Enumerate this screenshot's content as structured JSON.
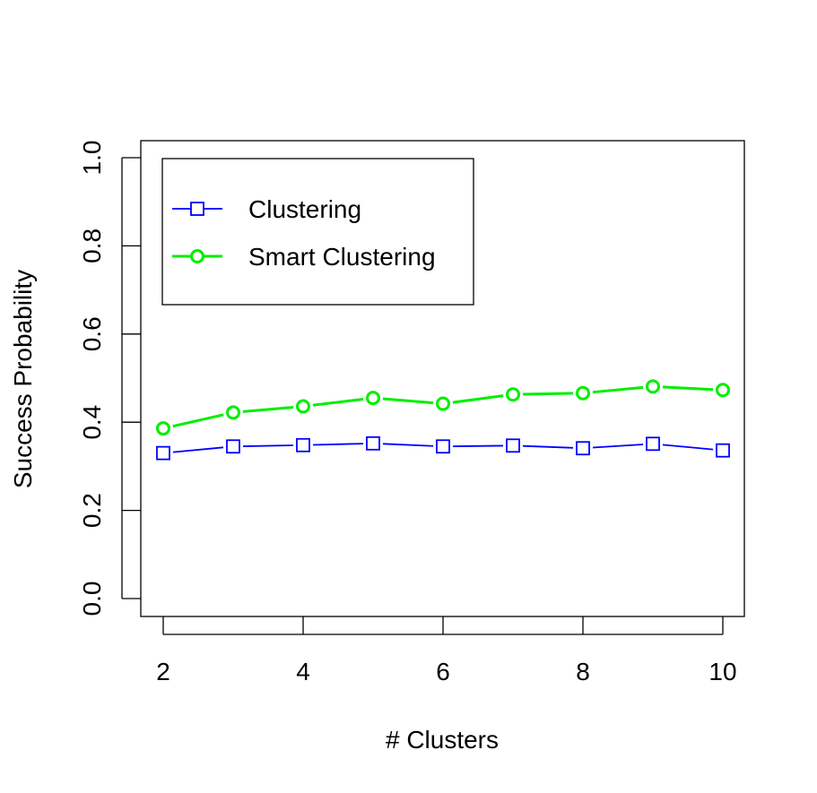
{
  "chart_data": {
    "type": "line",
    "xlabel": "# Clusters",
    "ylabel": "Success Probability",
    "xlim": [
      2,
      10
    ],
    "ylim": [
      0,
      1
    ],
    "x_ticks": [
      2,
      4,
      6,
      8,
      10
    ],
    "x_tick_labels": [
      "2",
      "4",
      "6",
      "8",
      "10"
    ],
    "y_ticks": [
      0,
      0.2,
      0.4,
      0.6,
      0.8,
      1.0
    ],
    "y_tick_labels": [
      "0.0",
      "0.2",
      "0.4",
      "0.6",
      "0.8",
      "1.0"
    ],
    "grid": false,
    "legend_position": "top-left",
    "x": [
      2,
      3,
      4,
      5,
      6,
      7,
      8,
      9,
      10
    ],
    "series": [
      {
        "name": "Clustering",
        "color": "#0000ff",
        "marker": "square",
        "values": [
          0.33,
          0.345,
          0.348,
          0.352,
          0.345,
          0.347,
          0.341,
          0.351,
          0.336
        ]
      },
      {
        "name": "Smart Clustering",
        "color": "#00ee00",
        "marker": "circle",
        "values": [
          0.386,
          0.422,
          0.436,
          0.455,
          0.442,
          0.463,
          0.466,
          0.481,
          0.473
        ]
      }
    ]
  }
}
